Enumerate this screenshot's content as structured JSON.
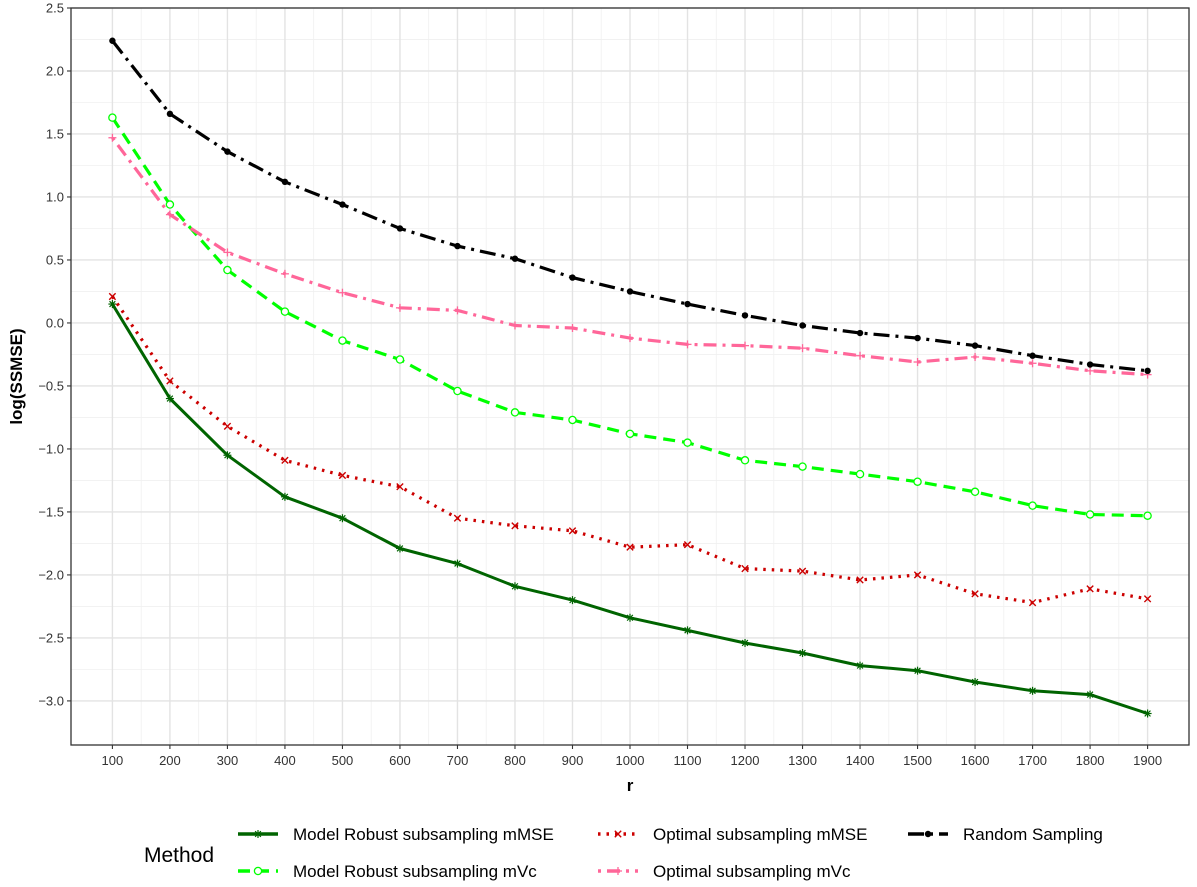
{
  "chart_data": {
    "type": "line",
    "title": "",
    "xlabel": "r",
    "ylabel": "log(SSMSE)",
    "x": [
      100,
      200,
      300,
      400,
      500,
      600,
      700,
      800,
      900,
      1000,
      1100,
      1200,
      1300,
      1400,
      1500,
      1600,
      1700,
      1800,
      1900
    ],
    "x_tick_labels": [
      "100",
      "200",
      "300",
      "400",
      "500",
      "600",
      "700",
      "800",
      "900",
      "1000",
      "1100",
      "1200",
      "1300",
      "1400",
      "1500",
      "1600",
      "1700",
      "1800",
      "1900"
    ],
    "ylim": [
      -3.35,
      2.5
    ],
    "y_ticks": [
      -3.0,
      -2.5,
      -2.0,
      -1.5,
      -1.0,
      -0.5,
      0.0,
      0.5,
      1.0,
      1.5,
      2.0,
      2.5
    ],
    "y_tick_labels": [
      "−3.0",
      "−2.5",
      "−2.0",
      "−1.5",
      "−1.0",
      "−0.5",
      "0.0",
      "0.5",
      "1.0",
      "1.5",
      "2.0",
      "2.5"
    ],
    "grid": true,
    "legend": {
      "title": "Method",
      "position": "bottom"
    },
    "series": [
      {
        "name": "Model Robust subsampling mMSE",
        "color": "#006400",
        "line": "solid",
        "marker": "asterisk",
        "values": [
          0.15,
          -0.6,
          -1.05,
          -1.38,
          -1.55,
          -1.79,
          -1.91,
          -2.09,
          -2.2,
          -2.34,
          -2.44,
          -2.54,
          -2.62,
          -2.72,
          -2.76,
          -2.85,
          -2.92,
          -2.95,
          -3.1
        ]
      },
      {
        "name": "Model Robust subsampling mVc",
        "color": "#00ff00",
        "line": "dashed",
        "marker": "open-circle",
        "values": [
          1.63,
          0.94,
          0.42,
          0.09,
          -0.14,
          -0.29,
          -0.54,
          -0.71,
          -0.77,
          -0.88,
          -0.95,
          -1.09,
          -1.14,
          -1.2,
          -1.26,
          -1.34,
          -1.45,
          -1.52,
          -1.53
        ]
      },
      {
        "name": "Optimal subsampling mMSE",
        "color": "#cc0000",
        "line": "dotted",
        "marker": "x",
        "values": [
          0.21,
          -0.46,
          -0.82,
          -1.09,
          -1.21,
          -1.3,
          -1.55,
          -1.61,
          -1.65,
          -1.78,
          -1.76,
          -1.95,
          -1.97,
          -2.04,
          -2.0,
          -2.15,
          -2.22,
          -2.11,
          -2.19
        ]
      },
      {
        "name": "Optimal subsampling mVc",
        "color": "#ff6699",
        "line": "dotdash",
        "marker": "plus",
        "values": [
          1.47,
          0.86,
          0.56,
          0.39,
          0.24,
          0.12,
          0.1,
          -0.02,
          -0.04,
          -0.12,
          -0.17,
          -0.18,
          -0.2,
          -0.26,
          -0.31,
          -0.27,
          -0.32,
          -0.38,
          -0.41
        ]
      },
      {
        "name": "Random Sampling",
        "color": "#000000",
        "line": "longdash",
        "marker": "dot",
        "values": [
          2.24,
          1.66,
          1.36,
          1.12,
          0.94,
          0.75,
          0.61,
          0.51,
          0.36,
          0.25,
          0.15,
          0.06,
          -0.02,
          -0.08,
          -0.12,
          -0.18,
          -0.26,
          -0.33,
          -0.38
        ]
      }
    ]
  }
}
